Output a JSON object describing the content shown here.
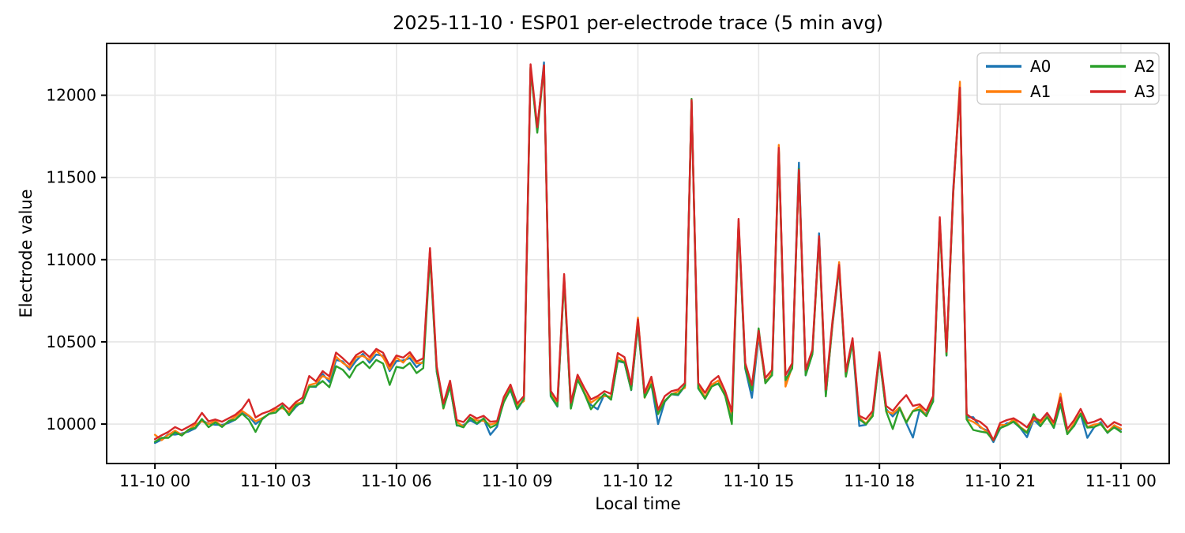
{
  "title": "2025-11-10 · ESP01 per-electrode trace (5 min avg)",
  "axes": {
    "xlabel": "Local time",
    "ylabel": "Electrode value",
    "x_ticks": [
      {
        "hour": 0,
        "label": "11-10 00"
      },
      {
        "hour": 3,
        "label": "11-10 03"
      },
      {
        "hour": 6,
        "label": "11-10 06"
      },
      {
        "hour": 9,
        "label": "11-10 09"
      },
      {
        "hour": 12,
        "label": "11-10 12"
      },
      {
        "hour": 15,
        "label": "11-10 15"
      },
      {
        "hour": 18,
        "label": "11-10 18"
      },
      {
        "hour": 21,
        "label": "11-10 21"
      },
      {
        "hour": 24,
        "label": "11-11 00"
      }
    ],
    "y_ticks": [
      10000,
      10500,
      11000,
      11500,
      12000
    ],
    "xlim_hours": [
      -1.2,
      25.2
    ],
    "ylim": [
      9760,
      12315
    ],
    "grid": true,
    "grid_color": "#e6e6e6",
    "spine_color": "#000000"
  },
  "legend": {
    "position": "upper-right",
    "columns": 2,
    "entries": [
      {
        "label": "A0",
        "color": "#1f77b4"
      },
      {
        "label": "A1",
        "color": "#ff7f0e"
      },
      {
        "label": "A2",
        "color": "#2ca02c"
      },
      {
        "label": "A3",
        "color": "#d62728"
      }
    ]
  },
  "chart_data": {
    "type": "line",
    "title": "2025-11-10 · ESP01 per-electrode trace (5 min avg)",
    "xlabel": "Local time",
    "ylabel": "Electrode value",
    "x_axis_note": "hours after 2025-11-10 00:00 local, 10-minute sampling",
    "ylim": [
      9760,
      12315
    ],
    "x_hours": [
      0,
      0.167,
      0.333,
      0.5,
      0.667,
      0.833,
      1,
      1.167,
      1.333,
      1.5,
      1.667,
      1.833,
      2,
      2.167,
      2.333,
      2.5,
      2.667,
      2.833,
      3,
      3.167,
      3.333,
      3.5,
      3.667,
      3.833,
      4,
      4.167,
      4.333,
      4.5,
      4.667,
      4.833,
      5,
      5.167,
      5.333,
      5.5,
      5.667,
      5.833,
      6,
      6.167,
      6.333,
      6.5,
      6.667,
      6.833,
      7,
      7.167,
      7.333,
      7.5,
      7.667,
      7.833,
      8,
      8.167,
      8.333,
      8.5,
      8.667,
      8.833,
      9,
      9.167,
      9.333,
      9.5,
      9.667,
      9.833,
      10,
      10.167,
      10.333,
      10.5,
      10.667,
      10.833,
      11,
      11.167,
      11.333,
      11.5,
      11.667,
      11.833,
      12,
      12.167,
      12.333,
      12.5,
      12.667,
      12.833,
      13,
      13.167,
      13.333,
      13.5,
      13.667,
      13.833,
      14,
      14.167,
      14.333,
      14.5,
      14.667,
      14.833,
      15,
      15.167,
      15.333,
      15.5,
      15.667,
      15.833,
      16,
      16.167,
      16.333,
      16.5,
      16.667,
      16.833,
      17,
      17.167,
      17.333,
      17.5,
      17.667,
      17.833,
      18,
      18.167,
      18.333,
      18.5,
      18.667,
      18.833,
      19,
      19.167,
      19.333,
      19.5,
      19.667,
      19.833,
      20,
      20.167,
      20.333,
      20.5,
      20.667,
      20.833,
      21,
      21.167,
      21.333,
      21.5,
      21.667,
      21.833,
      22,
      22.167,
      22.333,
      22.5,
      22.667,
      22.833,
      23,
      23.167,
      23.333,
      23.5,
      23.667,
      23.833,
      24
    ],
    "series": [
      {
        "name": "A0",
        "color": "#1f77b4",
        "values": [
          9885,
          9905,
          9938,
          9936,
          9943,
          9954,
          9973,
          10022,
          10003,
          9996,
          9995,
          10007,
          10027,
          10068,
          10048,
          10000,
          10030,
          10063,
          10070,
          10111,
          10056,
          10104,
          10141,
          10228,
          10226,
          10305,
          10256,
          10390,
          10381,
          10330,
          10386,
          10427,
          10373,
          10423,
          10415,
          10322,
          10383,
          10387,
          10401,
          10346,
          10381,
          11052,
          10318,
          10105,
          10230,
          9990,
          9993,
          10023,
          10000,
          10031,
          9935,
          9984,
          10145,
          10206,
          10090,
          10151,
          12162,
          11790,
          12200,
          10168,
          10106,
          10893,
          10096,
          10281,
          10186,
          10116,
          10090,
          10181,
          10150,
          10383,
          10373,
          10206,
          10603,
          10171,
          10243,
          10000,
          10136,
          10181,
          10176,
          10231,
          11958,
          10216,
          10156,
          10241,
          10243,
          10181,
          10043,
          11218,
          10336,
          10160,
          10533,
          10261,
          10296,
          11663,
          10263,
          10351,
          11590,
          10296,
          10426,
          11160,
          10176,
          10596,
          10950,
          10301,
          10493,
          9988,
          9996,
          10061,
          10403,
          10091,
          10046,
          10096,
          10006,
          9918,
          10086,
          10061,
          10136,
          11228,
          10416,
          11430,
          12038,
          10041,
          10042,
          9980,
          9961,
          9890,
          9973,
          10005,
          10013,
          9976,
          9920,
          10026,
          9986,
          10055,
          9976,
          10118,
          9951,
          9986,
          10060,
          9916,
          9980,
          10011,
          9946,
          9991,
          9966
        ]
      },
      {
        "name": "A1",
        "color": "#ff7f0e",
        "values": [
          9935,
          9902,
          9935,
          9960,
          9934,
          9964,
          9995,
          10017,
          10000,
          10020,
          9986,
          10017,
          10045,
          10080,
          10052,
          10017,
          10036,
          10060,
          10088,
          10097,
          10073,
          10124,
          10132,
          10237,
          10248,
          10292,
          10273,
          10410,
          10372,
          10344,
          10408,
          10414,
          10390,
          10447,
          10406,
          10332,
          10405,
          10374,
          10420,
          10370,
          10372,
          11058,
          10340,
          10094,
          10247,
          10014,
          9984,
          10037,
          10022,
          10020,
          9997,
          10008,
          10136,
          10223,
          10112,
          10140,
          12170,
          11800,
          12178,
          10192,
          10128,
          10887,
          10113,
          10290,
          10192,
          10130,
          10158,
          10170,
          10167,
          10407,
          10379,
          10220,
          10648,
          10160,
          10260,
          10077,
          10142,
          10180,
          10198,
          10220,
          11963,
          10240,
          10162,
          10240,
          10265,
          10170,
          10060,
          11232,
          10360,
          10209,
          10555,
          10250,
          10313,
          11698,
          10228,
          10350,
          11548,
          10318,
          10432,
          11128,
          10182,
          10602,
          10985,
          10290,
          10510,
          10040,
          10002,
          10060,
          10425,
          10080,
          10063,
          10102,
          10012,
          10080,
          10108,
          10050,
          10153,
          11232,
          10422,
          11398,
          12082,
          10031,
          10013,
          9986,
          9952,
          9906,
          9995,
          9994,
          10030,
          9982,
          9952,
          10032,
          10008,
          10046,
          9993,
          10185,
          9942,
          10003,
          10066,
          9982,
          9997,
          10002,
          9952,
          9993,
          9971
        ]
      },
      {
        "name": "A2",
        "color": "#2ca02c",
        "values": [
          9892,
          9916,
          9916,
          9950,
          9930,
          9966,
          9977,
          10031,
          9981,
          10010,
          9982,
          10019,
          10027,
          10063,
          10026,
          9952,
          10032,
          10062,
          10070,
          10111,
          10054,
          10114,
          10128,
          10227,
          10230,
          10262,
          10224,
          10352,
          10330,
          10282,
          10352,
          10380,
          10340,
          10390,
          10368,
          10238,
          10348,
          10340,
          10372,
          10310,
          10340,
          11022,
          10322,
          10096,
          10228,
          9994,
          9980,
          10039,
          10004,
          10034,
          9978,
          9998,
          10132,
          10212,
          10094,
          10154,
          12168,
          11772,
          12172,
          10172,
          10110,
          10882,
          10094,
          10270,
          10188,
          10090,
          10140,
          10184,
          10148,
          10387,
          10375,
          10208,
          10607,
          10162,
          10241,
          10060,
          10140,
          10182,
          10180,
          10234,
          11978,
          10218,
          10154,
          10228,
          10247,
          10172,
          10000,
          11222,
          10340,
          10205,
          10582,
          10248,
          10298,
          11667,
          10267,
          10338,
          11552,
          10298,
          10424,
          11132,
          10168,
          10614,
          10954,
          10288,
          10495,
          10030,
          9998,
          10048,
          10407,
          10078,
          9970,
          10098,
          10008,
          10078,
          10088,
          10048,
          10138,
          11232,
          10418,
          11402,
          12042,
          10028,
          9964,
          9955,
          9948,
          9900,
          9975,
          9992,
          10015,
          9978,
          9946,
          10060,
          9988,
          10042,
          9978,
          10122,
          9938,
          9988,
          10062,
          9978,
          9982,
          10000,
          9948,
          9980,
          9952
        ]
      },
      {
        "name": "A3",
        "color": "#d62728",
        "values": [
          9908,
          9932,
          9952,
          9982,
          9962,
          9984,
          10007,
          10068,
          10017,
          10028,
          10014,
          10035,
          10057,
          10092,
          10150,
          10040,
          10064,
          10078,
          10100,
          10127,
          10090,
          10134,
          10160,
          10292,
          10260,
          10322,
          10290,
          10435,
          10400,
          10362,
          10420,
          10444,
          10407,
          10457,
          10434,
          10352,
          10417,
          10404,
          10437,
          10380,
          10400,
          11070,
          10352,
          10124,
          10264,
          10024,
          10012,
          10057,
          10034,
          10050,
          10014,
          10018,
          10164,
          10240,
          10124,
          10170,
          12188,
          11806,
          12182,
          10202,
          10140,
          10912,
          10130,
          10300,
          10220,
          10150,
          10170,
          10200,
          10184,
          10432,
          10407,
          10240,
          10637,
          10190,
          10288,
          10087,
          10170,
          10200,
          10210,
          10250,
          11970,
          10250,
          10190,
          10260,
          10292,
          10200,
          10077,
          11248,
          10370,
          10237,
          10567,
          10280,
          10330,
          11680,
          10297,
          10370,
          11545,
          10330,
          10452,
          11142,
          10210,
          10626,
          10968,
          10320,
          10522,
          10050,
          10030,
          10080,
          10437,
          10110,
          10080,
          10132,
          10176,
          10110,
          10120,
          10080,
          10170,
          11258,
          10440,
          11412,
          12046,
          10060,
          10030,
          10014,
          9980,
          9902,
          10007,
          10024,
          10035,
          10010,
          9980,
          10042,
          10020,
          10068,
          10010,
          10162,
          9970,
          10022,
          10092,
          10004,
          10014,
          10032,
          9980,
          10012,
          9994
        ]
      }
    ]
  }
}
